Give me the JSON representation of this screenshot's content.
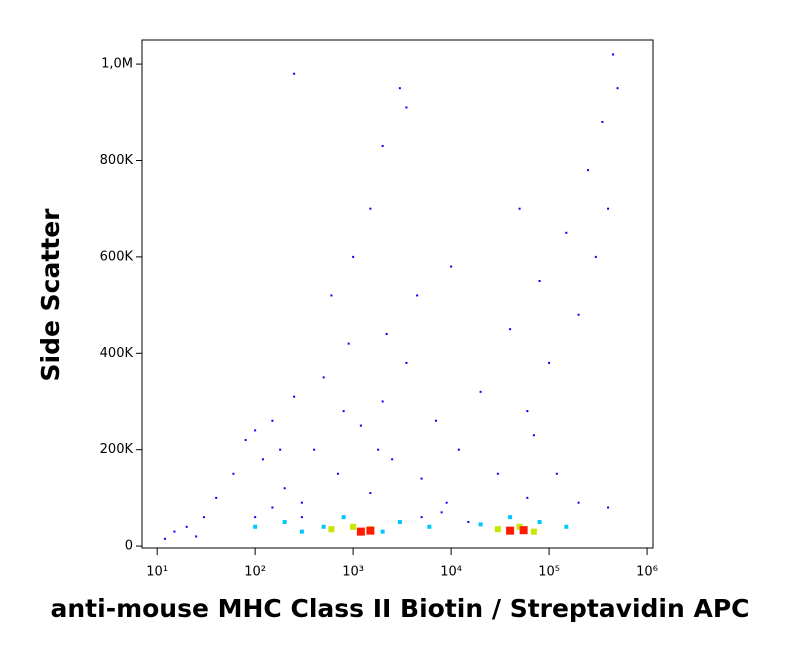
{
  "chart_data": {
    "type": "scatter",
    "xlabel": "anti-mouse MHC Class II Biotin / Streptavidin APC",
    "ylabel": "Side Scatter",
    "xscale": "log",
    "xlim": [
      7,
      1150000
    ],
    "xticks": [
      {
        "value": 10,
        "label": "10¹"
      },
      {
        "value": 100,
        "label": "10²"
      },
      {
        "value": 1000,
        "label": "10³"
      },
      {
        "value": 10000,
        "label": "10⁴"
      },
      {
        "value": 100000,
        "label": "10⁵"
      },
      {
        "value": 1000000,
        "label": "10⁶"
      }
    ],
    "ylim": [
      -4000,
      1050000
    ],
    "yticks": [
      0,
      {
        "value": 200000,
        "label": "200K"
      },
      {
        "value": 400000,
        "label": "400K"
      },
      {
        "value": 600000,
        "label": "600K"
      },
      {
        "value": 800000,
        "label": "800K"
      },
      {
        "value": 1000000,
        "label": "1,0M"
      }
    ],
    "series": [
      {
        "color": "#0000ff",
        "x": [
          60,
          80,
          120,
          150,
          200,
          250,
          300,
          400,
          500,
          700,
          900,
          1200,
          1500,
          2000,
          2500,
          3500,
          5000,
          7000,
          9000,
          12000,
          20000,
          30000,
          40000,
          60000,
          80000,
          100000,
          150000,
          200000,
          250000,
          300000,
          350000,
          400000,
          500000,
          450000,
          30,
          40,
          20,
          15,
          100,
          150,
          5000,
          8000,
          15000,
          100,
          180,
          600,
          1000,
          1500,
          250,
          3000,
          3500,
          2000,
          4500,
          10000,
          50000,
          70000,
          120000,
          200000,
          400000,
          60000,
          25,
          12,
          300,
          800,
          1800,
          2200
        ],
        "y": [
          150000,
          220000,
          180000,
          260000,
          120000,
          310000,
          90000,
          200000,
          350000,
          150000,
          420000,
          250000,
          110000,
          300000,
          180000,
          380000,
          140000,
          260000,
          90000,
          200000,
          320000,
          150000,
          450000,
          280000,
          550000,
          380000,
          650000,
          480000,
          780000,
          600000,
          880000,
          700000,
          950000,
          1020000,
          60000,
          100000,
          40000,
          30000,
          60000,
          80000,
          60000,
          70000,
          50000,
          240000,
          200000,
          520000,
          600000,
          700000,
          980000,
          950000,
          910000,
          830000,
          520000,
          580000,
          700000,
          230000,
          150000,
          90000,
          80000,
          100000,
          20000,
          15000,
          60000,
          280000,
          200000,
          440000
        ]
      },
      {
        "color": "#00c8ff",
        "x": [
          100,
          200,
          500,
          800,
          3000,
          6000,
          20000,
          40000,
          80000,
          150000,
          300,
          2000
        ],
        "y": [
          40000,
          50000,
          40000,
          60000,
          50000,
          40000,
          45000,
          60000,
          50000,
          40000,
          30000,
          30000
        ]
      },
      {
        "color": "#c8e600",
        "x": [
          600,
          1000,
          1500,
          30000,
          50000,
          70000
        ],
        "y": [
          35000,
          40000,
          35000,
          35000,
          40000,
          30000
        ]
      },
      {
        "color": "#ff1a00",
        "x": [
          1200,
          1500,
          40000,
          55000
        ],
        "y": [
          30000,
          32000,
          32000,
          33000
        ]
      }
    ]
  }
}
